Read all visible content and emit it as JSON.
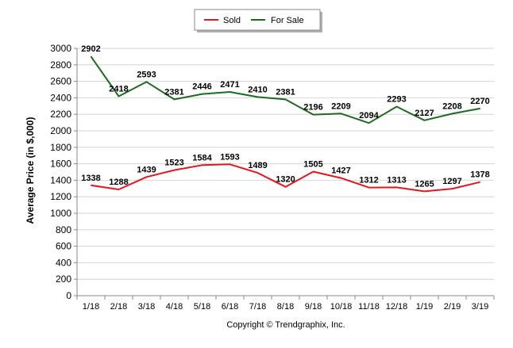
{
  "chart_data": {
    "type": "line",
    "categories": [
      "1/18",
      "2/18",
      "3/18",
      "4/18",
      "5/18",
      "6/18",
      "7/18",
      "8/18",
      "9/18",
      "10/18",
      "11/18",
      "12/18",
      "1/19",
      "2/19",
      "3/19"
    ],
    "series": [
      {
        "name": "Sold",
        "color": "#e8141c",
        "values": [
          1338,
          1288,
          1439,
          1523,
          1584,
          1593,
          1489,
          1320,
          1505,
          1427,
          1312,
          1313,
          1265,
          1297,
          1378
        ]
      },
      {
        "name": "For Sale",
        "color": "#1e6b1e",
        "values": [
          2902,
          2418,
          2593,
          2381,
          2446,
          2471,
          2410,
          2381,
          2196,
          2209,
          2094,
          2293,
          2127,
          2208,
          2270
        ]
      }
    ],
    "ylabel": "Average Price (in $,000)",
    "ylim": [
      0,
      3000
    ],
    "yticks": [
      0,
      200,
      400,
      600,
      800,
      1000,
      1200,
      1400,
      1600,
      1800,
      2000,
      2200,
      2400,
      2600,
      2800,
      3000
    ],
    "grid": true,
    "legend_position": "top-center",
    "data_labels": true
  },
  "footer": {
    "copyright": "Copyright © Trendgraphix, Inc."
  }
}
